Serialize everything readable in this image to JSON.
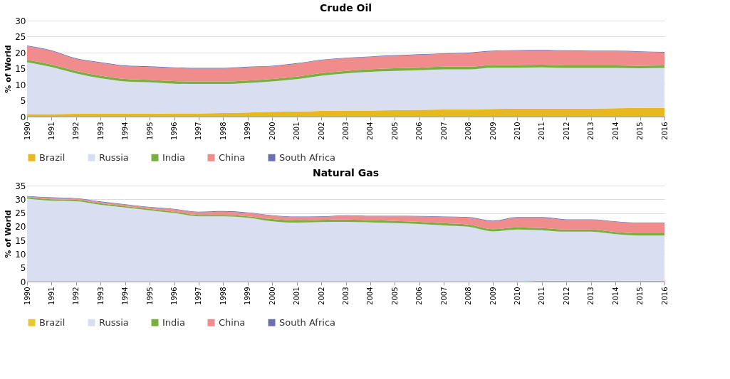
{
  "chart_data": [
    {
      "type": "area",
      "title": "Crude Oil",
      "ylabel": "% of World",
      "stacked": true,
      "grid": "y",
      "legend": "bottom",
      "categories": [
        "1990",
        "1991",
        "1992",
        "1993",
        "1994",
        "1995",
        "1996",
        "1997",
        "1998",
        "1999",
        "2000",
        "2001",
        "2002",
        "2003",
        "2004",
        "2005",
        "2006",
        "2007",
        "2008",
        "2009",
        "2010",
        "2011",
        "2012",
        "2013",
        "2014",
        "2015",
        "2016"
      ],
      "ylim": [
        0,
        30
      ],
      "yticks": [
        0,
        5,
        10,
        15,
        20,
        25,
        30
      ],
      "series": [
        {
          "name": "Brazil",
          "color": "#e8b820",
          "values": [
            0.8,
            0.8,
            0.9,
            0.9,
            0.9,
            0.9,
            1.0,
            1.0,
            1.1,
            1.3,
            1.5,
            1.6,
            1.8,
            1.9,
            1.9,
            2.0,
            2.1,
            2.2,
            2.3,
            2.4,
            2.5,
            2.5,
            2.5,
            2.5,
            2.6,
            2.7,
            2.7
          ]
        },
        {
          "name": "Russia",
          "color": "#d9dff0",
          "values": [
            16.2,
            14.7,
            12.6,
            11.1,
            10.1,
            9.8,
            9.3,
            9.2,
            9.1,
            9.2,
            9.5,
            10.1,
            11.0,
            11.6,
            12.1,
            12.3,
            12.4,
            12.6,
            12.5,
            12.9,
            12.8,
            12.9,
            12.7,
            12.7,
            12.6,
            12.4,
            12.5
          ]
        },
        {
          "name": "India",
          "color": "#78b040",
          "values": [
            0.8,
            0.8,
            0.8,
            0.8,
            0.8,
            0.8,
            0.8,
            0.8,
            0.8,
            0.8,
            0.8,
            0.8,
            0.8,
            0.8,
            0.8,
            0.8,
            0.8,
            0.8,
            0.8,
            0.8,
            0.8,
            0.8,
            0.8,
            0.8,
            0.8,
            0.8,
            0.8
          ]
        },
        {
          "name": "China",
          "color": "#f08c8c",
          "values": [
            4.2,
            4.2,
            3.7,
            4.0,
            4.0,
            4.0,
            4.1,
            4.0,
            4.0,
            4.1,
            3.9,
            4.0,
            4.0,
            3.9,
            3.8,
            3.9,
            4.0,
            4.0,
            4.2,
            4.3,
            4.5,
            4.5,
            4.5,
            4.4,
            4.4,
            4.3,
            4.0
          ]
        },
        {
          "name": "South Africa",
          "color": "#7070b0",
          "values": [
            0.2,
            0.2,
            0.2,
            0.2,
            0.2,
            0.2,
            0.2,
            0.2,
            0.2,
            0.2,
            0.2,
            0.2,
            0.2,
            0.2,
            0.2,
            0.2,
            0.2,
            0.2,
            0.2,
            0.2,
            0.2,
            0.2,
            0.2,
            0.2,
            0.2,
            0.2,
            0.2
          ]
        }
      ]
    },
    {
      "type": "area",
      "title": "Natural Gas",
      "ylabel": "% of World",
      "stacked": true,
      "grid": "y",
      "legend": "bottom",
      "categories": [
        "1990",
        "1991",
        "1992",
        "1993",
        "1994",
        "1995",
        "1996",
        "1997",
        "1998",
        "1999",
        "2000",
        "2001",
        "2002",
        "2003",
        "2004",
        "2005",
        "2006",
        "2007",
        "2008",
        "2009",
        "2010",
        "2011",
        "2012",
        "2013",
        "2014",
        "2015",
        "2016"
      ],
      "ylim": [
        0,
        35
      ],
      "yticks": [
        0,
        5,
        10,
        15,
        20,
        25,
        30,
        35
      ],
      "series": [
        {
          "name": "Brazil",
          "color": "#e8c830",
          "values": [
            0,
            0,
            0,
            0,
            0,
            0,
            0,
            0,
            0,
            0,
            0,
            0,
            0,
            0,
            0,
            0,
            0,
            0,
            0,
            0,
            0,
            0.3,
            0.3,
            0.3,
            0.3,
            0.3,
            0.3
          ]
        },
        {
          "name": "Russia",
          "color": "#d9dff0",
          "values": [
            30.3,
            29.5,
            29.3,
            28.0,
            27.0,
            26.0,
            25.0,
            23.8,
            23.8,
            23.3,
            22.0,
            21.5,
            21.7,
            21.8,
            21.6,
            21.3,
            21.0,
            20.5,
            20.0,
            18.3,
            19.0,
            18.4,
            17.9,
            17.9,
            17.0,
            16.5,
            16.5
          ]
        },
        {
          "name": "India",
          "color": "#78b040",
          "values": [
            0.5,
            0.5,
            0.5,
            0.5,
            0.5,
            0.5,
            0.5,
            0.5,
            0.5,
            0.5,
            0.8,
            0.8,
            0.8,
            0.8,
            0.8,
            0.8,
            0.8,
            0.8,
            0.8,
            0.8,
            0.8,
            0.8,
            0.8,
            0.8,
            0.8,
            0.8,
            0.8
          ]
        },
        {
          "name": "China",
          "color": "#f08c8c",
          "values": [
            0.2,
            0.5,
            0.4,
            0.5,
            0.5,
            0.5,
            0.8,
            1.0,
            1.2,
            1.2,
            1.2,
            1.2,
            1.1,
            1.4,
            1.4,
            1.7,
            1.9,
            2.2,
            2.5,
            2.9,
            3.5,
            3.8,
            3.5,
            3.5,
            3.7,
            3.7,
            3.7
          ]
        },
        {
          "name": "South Africa",
          "color": "#7070b0",
          "values": [
            0.2,
            0.2,
            0.2,
            0.2,
            0.2,
            0.2,
            0.2,
            0.2,
            0.2,
            0.2,
            0.2,
            0.2,
            0.2,
            0.2,
            0.2,
            0.2,
            0.2,
            0.2,
            0.2,
            0.2,
            0.2,
            0.2,
            0.2,
            0.2,
            0.2,
            0.2,
            0.2
          ]
        }
      ]
    }
  ]
}
